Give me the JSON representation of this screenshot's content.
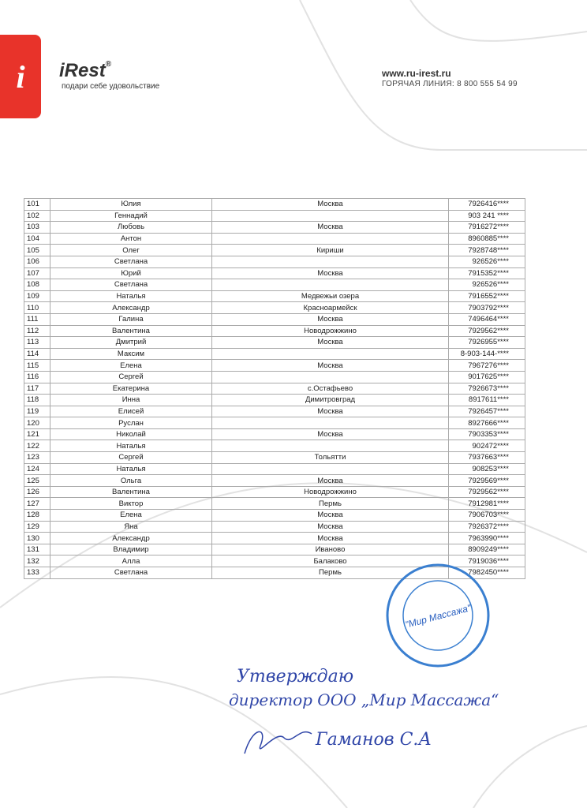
{
  "header": {
    "logo_letter": "i",
    "brand": "iRest",
    "brand_mark": "®",
    "tagline": "подари себе удовольствие",
    "site": "www.ru-irest.ru",
    "hotline": "ГОРЯЧАЯ ЛИНИЯ: 8 800 555 54 99"
  },
  "table": {
    "rows": [
      [
        "101",
        "Юлия",
        "Москва",
        "7926416****"
      ],
      [
        "102",
        "Геннадий",
        null,
        "903 241 ****"
      ],
      [
        "103",
        "Любовь",
        "Москва",
        "7916272****"
      ],
      [
        "104",
        "Антон",
        null,
        "8960885****"
      ],
      [
        "105",
        "Олег",
        "Кириши",
        "7928748****"
      ],
      [
        "106",
        "Светлана",
        null,
        "926526****"
      ],
      [
        "107",
        "Юрий",
        "Москва",
        "7915352****"
      ],
      [
        "108",
        "Светлана",
        null,
        "926526****"
      ],
      [
        "109",
        "Наталья",
        "Медвежьи озера",
        "7916552****"
      ],
      [
        "110",
        "Александр",
        "Красноармейск",
        "7903792****"
      ],
      [
        "111",
        "Галина",
        "Москва",
        "7496464****"
      ],
      [
        "112",
        "Валентина",
        "Новодрожжино",
        "7929562****"
      ],
      [
        "113",
        "Дмитрий",
        "Москва",
        "7926955****"
      ],
      [
        "114",
        "Максим",
        null,
        "8-903-144-****"
      ],
      [
        "115",
        "Елена",
        "Москва",
        "7967276****"
      ],
      [
        "116",
        "Сергей",
        null,
        "9017625****"
      ],
      [
        "117",
        "Екатерина",
        "с.Остафьево",
        "7926673****"
      ],
      [
        "118",
        "Инна",
        "Димитровград",
        "8917611****"
      ],
      [
        "119",
        "Елисей",
        "Москва",
        "7926457****"
      ],
      [
        "120",
        "Руслан",
        null,
        "8927666****"
      ],
      [
        "121",
        "Николай",
        "Москва",
        "7903353****"
      ],
      [
        "122",
        "Наталья",
        null,
        "902472****"
      ],
      [
        "123",
        "Сергей",
        "Тольятти",
        "7937663****"
      ],
      [
        "124",
        "Наталья",
        null,
        "908253****"
      ],
      [
        "125",
        "Ольга",
        "Москва",
        "7929569****"
      ],
      [
        "126",
        "Валентина",
        "Новодрожжино",
        "7929562****"
      ],
      [
        "127",
        "Виктор",
        "Пермь",
        "7912981****"
      ],
      [
        "128",
        "Елена",
        "Москва",
        "7906703****"
      ],
      [
        "129",
        "Яна",
        "Москва",
        "7926372****"
      ],
      [
        "130",
        "Александр",
        "Москва",
        "7963990****"
      ],
      [
        "131",
        "Владимир",
        "Иваново",
        "8909249****"
      ],
      [
        "132",
        "Алла",
        "Балаково",
        "7919036****"
      ],
      [
        "133",
        "Светлана",
        "Пермь",
        "7982450****"
      ]
    ]
  },
  "stamp": {
    "center": "\"Мир Массажа\""
  },
  "signature": {
    "line1": "Утверждаю",
    "line2": "директор ООО „Мир Массажа“",
    "line3": "Гаманов С.А"
  }
}
